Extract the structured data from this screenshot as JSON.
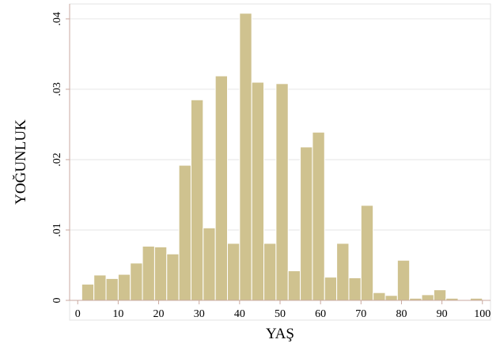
{
  "chart_data": {
    "type": "bar",
    "xlabel": "YAŞ",
    "ylabel": "YOĞUNLUK",
    "xlim": [
      -2,
      102
    ],
    "ylim": [
      0,
      0.041
    ],
    "x_ticks": [
      0,
      10,
      20,
      30,
      40,
      50,
      60,
      70,
      80,
      90,
      100
    ],
    "x_tick_labels": [
      "0",
      "10",
      "20",
      "30",
      "40",
      "50",
      "60",
      "70",
      "80",
      "90",
      "100"
    ],
    "y_ticks": [
      0,
      0.01,
      0.02,
      0.03,
      0.04
    ],
    "y_tick_labels": [
      "0",
      ".01",
      ".02",
      ".03",
      ".04"
    ],
    "grid": true,
    "bin_width": 3,
    "bar_color": "#cfc28f",
    "bar_edge_color": "#ffffff",
    "axis_color": "#c9a9a0",
    "bins": [
      {
        "x0": 1,
        "x1": 4,
        "value": 0.0023
      },
      {
        "x0": 4,
        "x1": 7,
        "value": 0.0036
      },
      {
        "x0": 7,
        "x1": 10,
        "value": 0.0031
      },
      {
        "x0": 10,
        "x1": 13,
        "value": 0.0037
      },
      {
        "x0": 13,
        "x1": 16,
        "value": 0.0053
      },
      {
        "x0": 16,
        "x1": 19,
        "value": 0.0077
      },
      {
        "x0": 19,
        "x1": 22,
        "value": 0.0076
      },
      {
        "x0": 22,
        "x1": 25,
        "value": 0.0066
      },
      {
        "x0": 25,
        "x1": 28,
        "value": 0.0192
      },
      {
        "x0": 28,
        "x1": 31,
        "value": 0.0285
      },
      {
        "x0": 31,
        "x1": 34,
        "value": 0.0103
      },
      {
        "x0": 34,
        "x1": 37,
        "value": 0.0319
      },
      {
        "x0": 37,
        "x1": 40,
        "value": 0.0081
      },
      {
        "x0": 40,
        "x1": 43,
        "value": 0.0408
      },
      {
        "x0": 43,
        "x1": 46,
        "value": 0.031
      },
      {
        "x0": 46,
        "x1": 49,
        "value": 0.0081
      },
      {
        "x0": 49,
        "x1": 52,
        "value": 0.0308
      },
      {
        "x0": 52,
        "x1": 55,
        "value": 0.0042
      },
      {
        "x0": 55,
        "x1": 58,
        "value": 0.0218
      },
      {
        "x0": 58,
        "x1": 61,
        "value": 0.0239
      },
      {
        "x0": 61,
        "x1": 64,
        "value": 0.0033
      },
      {
        "x0": 64,
        "x1": 67,
        "value": 0.0081
      },
      {
        "x0": 67,
        "x1": 70,
        "value": 0.0032
      },
      {
        "x0": 70,
        "x1": 73,
        "value": 0.0135
      },
      {
        "x0": 73,
        "x1": 76,
        "value": 0.0011
      },
      {
        "x0": 76,
        "x1": 79,
        "value": 0.0007
      },
      {
        "x0": 79,
        "x1": 82,
        "value": 0.0057
      },
      {
        "x0": 82,
        "x1": 85,
        "value": 0.0003
      },
      {
        "x0": 85,
        "x1": 88,
        "value": 0.0008
      },
      {
        "x0": 88,
        "x1": 91,
        "value": 0.0015
      },
      {
        "x0": 91,
        "x1": 94,
        "value": 0.0003
      },
      {
        "x0": 94,
        "x1": 97,
        "value": 0.0001
      },
      {
        "x0": 97,
        "x1": 100,
        "value": 0.0003
      }
    ]
  }
}
